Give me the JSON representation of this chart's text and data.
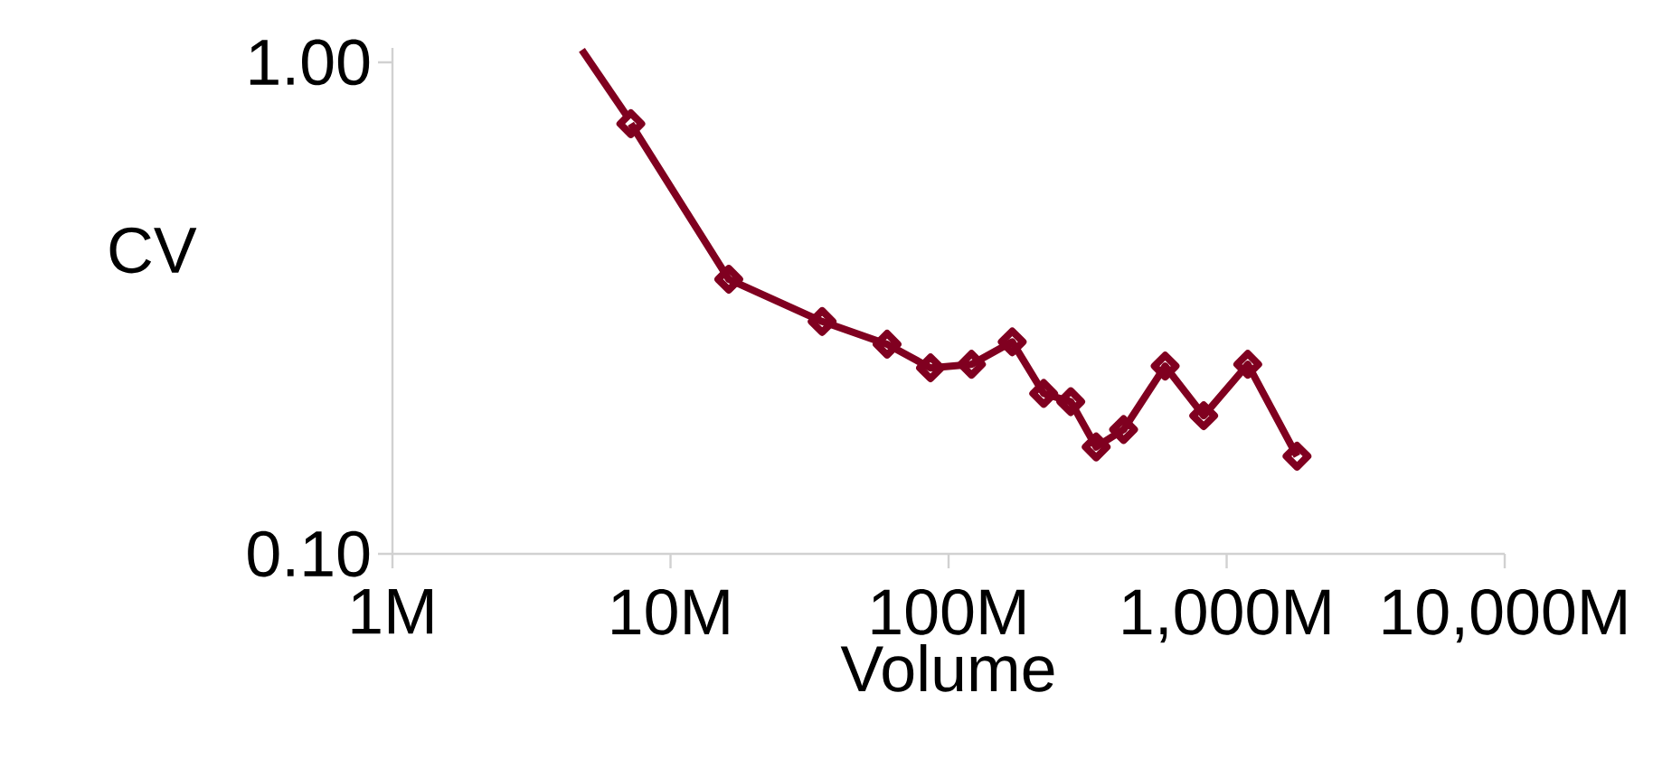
{
  "chart_data": {
    "type": "line",
    "xlabel": "Volume",
    "ylabel": "CV",
    "log": "xy",
    "grid": false,
    "xlim": [
      1,
      10000
    ],
    "ylim": [
      0.1,
      1.07
    ],
    "xticks": [
      {
        "value": 1,
        "label": "1M"
      },
      {
        "value": 10,
        "label": "10M"
      },
      {
        "value": 100,
        "label": "100M"
      },
      {
        "value": 1000,
        "label": "1,000M"
      },
      {
        "value": 10000,
        "label": "10,000M"
      }
    ],
    "yticks": [
      {
        "value": 0.1,
        "label": "0.10"
      },
      {
        "value": 1,
        "label": "1.00"
      }
    ],
    "series": [
      {
        "color": "#800020",
        "marker": "none",
        "line_style": "solid",
        "x": [
          4.8,
          6.95
        ],
        "values": [
          1.06,
          0.78
        ]
      },
      {
        "color": "#800020",
        "marker": "diamond",
        "line_style": "solid",
        "x": [
          7.2,
          16.2,
          35.1,
          60.1,
          86.1,
          120.9,
          169.4,
          219.8,
          275,
          339.5,
          426,
          601,
          827,
          1191,
          1791
        ],
        "values": [
          0.75,
          0.362,
          0.297,
          0.267,
          0.239,
          0.243,
          0.27,
          0.212,
          0.204,
          0.165,
          0.179,
          0.241,
          0.191,
          0.243,
          0.158
        ]
      }
    ]
  }
}
